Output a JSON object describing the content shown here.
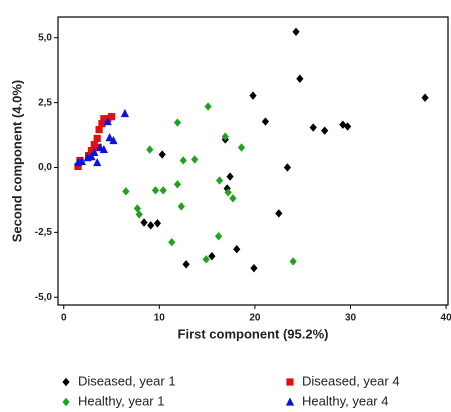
{
  "chart_data": {
    "type": "scatter",
    "x_label": "First component (95.2%)",
    "y_label": "Second component (4.0%)",
    "xlim": [
      -0.6,
      40.2
    ],
    "ylim": [
      -5.3,
      5.8
    ],
    "xticks": [
      0,
      10,
      20,
      30,
      40
    ],
    "yticks": [
      {
        "value": 5,
        "label": "5,0"
      },
      {
        "value": 2.5,
        "label": "2,5"
      },
      {
        "value": 0,
        "label": "0,0"
      },
      {
        "value": -2.5,
        "label": "-2,5"
      },
      {
        "value": -5,
        "label": "-5,0"
      }
    ],
    "series": [
      {
        "name": "Diseased, year 1",
        "color": "#000000",
        "marker": "diamond",
        "x": [
          24.3,
          24.7,
          19.8,
          21.1,
          26.1,
          27.3,
          29.2,
          29.7,
          37.8,
          16.9,
          10.3,
          17.4,
          17.1,
          23.4,
          22.5,
          8.4,
          9.1,
          9.8,
          18.1,
          15.5,
          12.8,
          19.9
        ],
        "y": [
          5.23,
          3.42,
          2.77,
          1.77,
          1.54,
          1.42,
          1.65,
          1.58,
          2.69,
          1.08,
          0.5,
          -0.35,
          -0.81,
          0.0,
          -1.77,
          -2.12,
          -2.23,
          -2.15,
          -3.15,
          -3.42,
          -3.73,
          -3.88
        ]
      },
      {
        "name": "Healthy, year 1",
        "color": "#1fa31f",
        "marker": "diamond",
        "x": [
          15.1,
          11.9,
          16.9,
          18.6,
          9.0,
          12.5,
          13.7,
          6.5,
          9.6,
          10.4,
          11.9,
          16.3,
          17.2,
          17.7,
          7.7,
          7.9,
          12.3,
          11.3,
          16.2,
          14.9,
          24.0
        ],
        "y": [
          2.35,
          1.73,
          1.19,
          0.77,
          0.69,
          0.27,
          0.31,
          -0.92,
          -0.88,
          -0.88,
          -0.65,
          -0.5,
          -0.96,
          -1.19,
          -1.58,
          -1.81,
          -1.5,
          -2.88,
          -2.65,
          -3.54,
          -3.62
        ]
      },
      {
        "name": "Diseased, year 4",
        "color": "#e01010",
        "marker": "square",
        "x": [
          1.5,
          1.7,
          2.6,
          3.2,
          3.5,
          3.7,
          4.0,
          4.2,
          4.6,
          5.0,
          2.9,
          3.6
        ],
        "y": [
          0.04,
          0.27,
          0.46,
          0.88,
          1.12,
          1.46,
          1.69,
          1.88,
          1.88,
          1.96,
          0.65,
          0.77
        ]
      },
      {
        "name": "Healthy, year 4",
        "color": "#1010e0",
        "marker": "triangle",
        "x": [
          1.5,
          1.9,
          2.5,
          2.9,
          3.2,
          3.5,
          3.8,
          4.2,
          4.8,
          5.2,
          6.4,
          4.6
        ],
        "y": [
          0.19,
          0.23,
          0.38,
          0.42,
          0.58,
          0.19,
          0.77,
          0.69,
          1.15,
          1.04,
          2.08,
          1.77
        ]
      }
    ]
  }
}
